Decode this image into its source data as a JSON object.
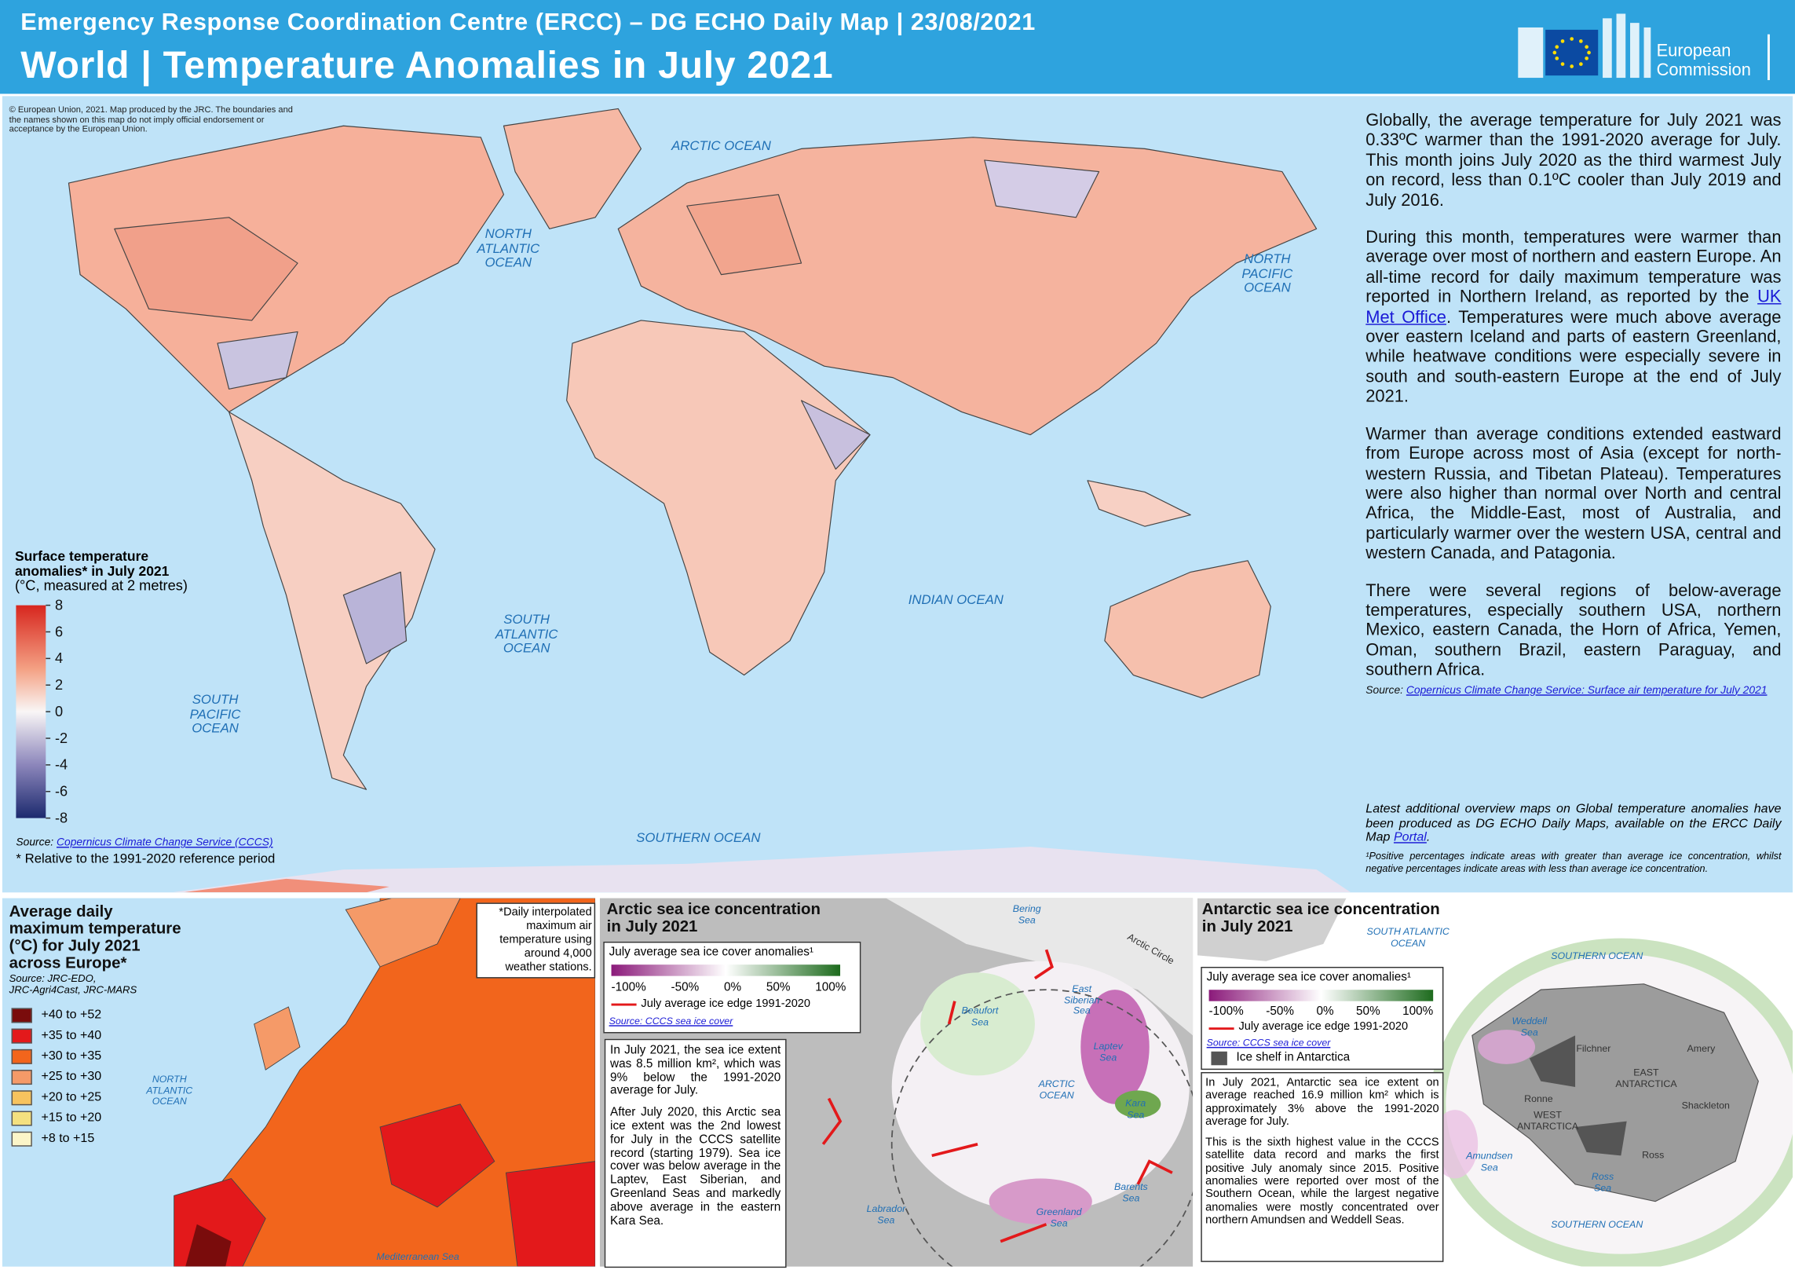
{
  "header": {
    "top_line": "Emergency Response Coordination Centre (ERCC) – DG ECHO Daily Map | 23/08/2021",
    "title": "World | Temperature Anomalies in July 2021",
    "logo_text": "European\nCommission"
  },
  "main_map": {
    "copyright": "© European Union, 2021. Map produced by the JRC. The boundaries and the names shown on this map do not imply official endorsement or acceptance by the European Union.",
    "ocean_labels": [
      "ARCTIC OCEAN",
      "NORTH\nATLANTIC\nOCEAN",
      "NORTH\nPACIFIC\nOCEAN",
      "SOUTH\nATLANTIC\nOCEAN",
      "SOUTH\nPACIFIC\nOCEAN",
      "INDIAN OCEAN",
      "SOUTHERN OCEAN"
    ],
    "legend": {
      "title": "Surface temperature\nanomalies* in July 2021",
      "subtitle": "(°C, measured at 2 metres)",
      "colorbar": {
        "lim": [
          -8,
          8
        ],
        "ticks": [
          8,
          6,
          4,
          2,
          0,
          -2,
          -4,
          -6,
          -8
        ]
      },
      "source_prefix": "Source:",
      "source_link": "Copernicus Climate Change Service (CCCS)",
      "footnote": "* Relative to the 1991-2020 reference period"
    }
  },
  "text_panel": {
    "paragraph_1": "Globally, the average temperature for July 2021 was 0.33ºC warmer than the 1991-2020 average for July. This month joins July 2020 as the third warmest July on record, less than 0.1ºC cooler than July 2019 and July 2016.",
    "paragraph_2": {
      "before": "During this month, temperatures were warmer than average over most of northern and eastern Europe. An all-time record for daily maximum temperature was reported in Northern Ireland, as reported by the ",
      "link": "UK Met Office",
      "after": ". Temperatures were much above average over eastern Iceland and parts of eastern Greenland, while heatwave conditions were especially severe in south and south-eastern Europe at the end of July 2021."
    },
    "paragraph_3": "Warmer than average conditions extended eastward from Europe across most of Asia (except for north-western Russia, and Tibetan Plateau). Temperatures were also higher than normal over North and central Africa, the Middle-East, most of Australia, and particularly warmer over the western USA, central and western Canada, and Patagonia.",
    "paragraph_4": "There were several regions of below-average temperatures, especially southern USA, northern Mexico, eastern Canada, the Horn of Africa, Yemen, Oman, southern Brazil, eastern Paraguay, and southern Africa.",
    "source_prefix": "Source:",
    "source_link": "Copernicus Climate Change Service: Surface air temperature for July 2021",
    "portal_note": {
      "before": "Latest additional overview maps on Global temperature anomalies have been produced as DG ECHO Daily Maps, available on the ERCC Daily Map ",
      "link": "Portal",
      "after": "."
    },
    "footnote": "¹Positive percentages indicate areas with greater than average ice concentration, whilst negative percentages indicate areas with less than average ice concentration."
  },
  "europe_panel": {
    "title": "Average daily\nmaximum temperature\n(°C) for July 2021\nacross Europe*",
    "source": "Source: JRC-EDO,\nJRC-Agri4Cast, JRC-MARS",
    "note": "*Daily interpolated\nmaximum air\ntemperature using\naround 4,000\nweather stations.",
    "classes": [
      {
        "label": "+40 to +52",
        "color": "#7a0c0c"
      },
      {
        "label": "+35 to +40",
        "color": "#e3191b"
      },
      {
        "label": "+30 to +35",
        "color": "#f2651c"
      },
      {
        "label": "+25 to +30",
        "color": "#f59a68"
      },
      {
        "label": "+20 to +25",
        "color": "#f7c35e"
      },
      {
        "label": "+15 to +20",
        "color": "#f4e07f"
      },
      {
        "label": "+8 to +15",
        "color": "#fbf5c8"
      }
    ],
    "places": [
      "NORTH\nATLANTIC\nOCEAN",
      "Mediterranean Sea"
    ]
  },
  "arctic_panel": {
    "title": "Arctic sea ice concentration\nin July 2021",
    "legend_title": "July average sea ice cover anomalies¹",
    "scale_labels": [
      "-100%",
      "-50%",
      "0%",
      "50%",
      "100%"
    ],
    "edge_label": "July average ice edge 1991-2020",
    "source": "Source: CCCS sea ice cover",
    "text": [
      "In July 2021, the sea ice extent was 8.5 million km², which was 9% below the 1991-2020 average for July.",
      "After July 2020, this Arctic sea ice extent was the 2nd lowest for July in the CCCS satellite record (starting 1979). Sea ice cover was below average in the Laptev, East Siberian, and Greenland Seas and markedly above average in the eastern Kara Sea."
    ],
    "places": [
      "Bering\nSea",
      "Beaufort\nSea",
      "East\nSiberian\nSea",
      "Laptev\nSea",
      "ARCTIC\nOCEAN",
      "Kara\nSea",
      "Barents\nSea",
      "Greenland\nSea",
      "Labrador\nSea",
      "Arctic Circle"
    ]
  },
  "antarctic_panel": {
    "title": "Antarctic sea ice concentration\nin July 2021",
    "legend_title": "July average sea ice cover anomalies¹",
    "scale_labels": [
      "-100%",
      "-50%",
      "0%",
      "50%",
      "100%"
    ],
    "edge_label": "July average ice edge 1991-2020",
    "source": "Source: CCCS sea ice cover",
    "shelf_label": "Ice shelf in Antarctica",
    "text": [
      "In July 2021, Antarctic sea ice extent on average reached 16.9 million km² which is approximately 3% above the 1991-2020 average for July.",
      "This is the sixth highest value in the CCCS satellite data record and marks the first positive July anomaly since 2015. Positive anomalies were reported over most of the Southern Ocean, while the largest negative anomalies were mostly concentrated over northern Amundsen and Weddell Seas."
    ],
    "places": [
      "SOUTH ATLANTIC\nOCEAN",
      "SOUTHERN OCEAN",
      "Weddell\nSea",
      "Filchner",
      "Amery",
      "EAST\nANTARCTICA",
      "Ronne",
      "WEST\nANTARCTICA",
      "Shackleton",
      "Amundsen\nSea",
      "Ross",
      "Ross\nSea",
      "SOUTHERN OCEAN"
    ]
  }
}
